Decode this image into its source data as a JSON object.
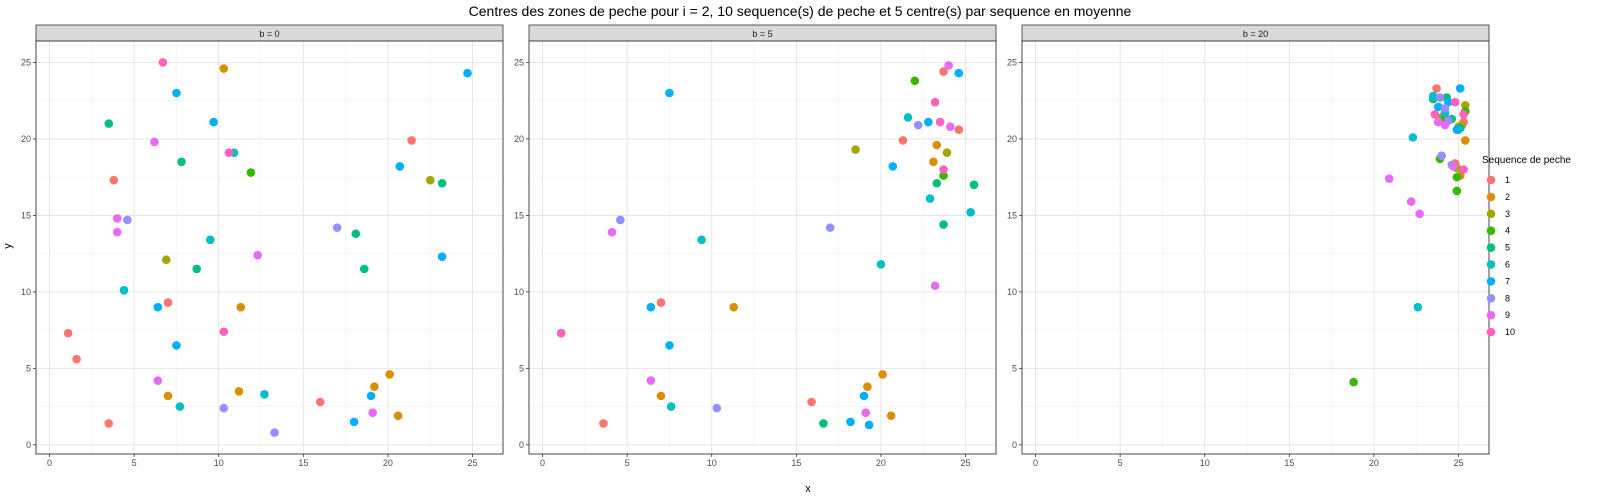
{
  "chart_data": {
    "type": "scatter",
    "title": "Centres des zones de peche pour i = 2, 10 sequence(s) de peche et 5 centre(s) par sequence en moyenne",
    "xlabel": "x",
    "ylabel": "y",
    "xlim": [
      -0.8,
      26.8
    ],
    "ylim": [
      -0.6,
      26.4
    ],
    "x_ticks": [
      0,
      5,
      10,
      15,
      20,
      25
    ],
    "y_ticks": [
      0,
      5,
      10,
      15,
      20,
      25
    ],
    "grid": true,
    "legend": {
      "title": "Sequence de peche",
      "position": "right",
      "entries": [
        "1",
        "2",
        "3",
        "4",
        "5",
        "6",
        "7",
        "8",
        "9",
        "10"
      ]
    },
    "colors": {
      "1": "#F8766D",
      "2": "#D89000",
      "3": "#A3A500",
      "4": "#39B600",
      "5": "#00BF7D",
      "6": "#00BFC4",
      "7": "#00B0F6",
      "8": "#9590FF",
      "9": "#E76BF3",
      "10": "#FF62BC"
    },
    "panels": [
      {
        "label": "b = 0",
        "points": [
          [
            1,
            1.1,
            7.3
          ],
          [
            1,
            1.6,
            5.6
          ],
          [
            1,
            3.5,
            1.4
          ],
          [
            1,
            3.8,
            17.3
          ],
          [
            1,
            7,
            9.3
          ],
          [
            1,
            16,
            2.8
          ],
          [
            1,
            21.4,
            19.9
          ],
          [
            2,
            10.3,
            24.6
          ],
          [
            2,
            7,
            3.2
          ],
          [
            2,
            11.3,
            9
          ],
          [
            2,
            11.2,
            3.5
          ],
          [
            2,
            19.2,
            3.8
          ],
          [
            2,
            20.1,
            4.6
          ],
          [
            2,
            20.6,
            1.9
          ],
          [
            3,
            6.9,
            12.1
          ],
          [
            3,
            22.5,
            17.3
          ],
          [
            4,
            11.9,
            17.8
          ],
          [
            5,
            3.5,
            21
          ],
          [
            5,
            7.8,
            18.5
          ],
          [
            5,
            8.7,
            11.5
          ],
          [
            5,
            18.1,
            13.8
          ],
          [
            5,
            18.6,
            11.5
          ],
          [
            5,
            23.2,
            17.1
          ],
          [
            6,
            4.4,
            10.1
          ],
          [
            6,
            7.7,
            2.5
          ],
          [
            6,
            9.5,
            13.4
          ],
          [
            6,
            12.7,
            3.3
          ],
          [
            6,
            10.9,
            19.1
          ],
          [
            7,
            7.5,
            23
          ],
          [
            7,
            9.7,
            21.1
          ],
          [
            7,
            6.4,
            9
          ],
          [
            7,
            7.5,
            6.5
          ],
          [
            7,
            18,
            1.5
          ],
          [
            7,
            19,
            3.2
          ],
          [
            7,
            20.7,
            18.2
          ],
          [
            7,
            23.2,
            12.3
          ],
          [
            7,
            24.7,
            24.3
          ],
          [
            8,
            4.6,
            14.7
          ],
          [
            8,
            10.3,
            2.4
          ],
          [
            8,
            13.3,
            0.8
          ],
          [
            8,
            17,
            14.2
          ],
          [
            9,
            4,
            14.8
          ],
          [
            9,
            4,
            13.9
          ],
          [
            9,
            6.2,
            19.8
          ],
          [
            9,
            6.4,
            4.2
          ],
          [
            9,
            12.3,
            12.4
          ],
          [
            9,
            19.1,
            2.1
          ],
          [
            10,
            6.7,
            25
          ],
          [
            10,
            10.6,
            19.1
          ],
          [
            10,
            10.3,
            7.4
          ]
        ]
      },
      {
        "label": "b = 5",
        "points": [
          [
            1,
            1.1,
            7.3
          ],
          [
            1,
            3.6,
            1.4
          ],
          [
            1,
            7,
            9.3
          ],
          [
            1,
            15.9,
            2.8
          ],
          [
            1,
            21.3,
            19.9
          ],
          [
            1,
            23.7,
            24.4
          ],
          [
            1,
            24.6,
            20.6
          ],
          [
            2,
            11.3,
            9
          ],
          [
            2,
            7,
            3.2
          ],
          [
            2,
            19.2,
            3.8
          ],
          [
            2,
            20.1,
            4.6
          ],
          [
            2,
            20.6,
            1.9
          ],
          [
            2,
            23.1,
            18.5
          ],
          [
            2,
            23.3,
            19.6
          ],
          [
            3,
            18.5,
            19.3
          ],
          [
            3,
            23.9,
            19.1
          ],
          [
            4,
            22,
            23.8
          ],
          [
            4,
            23.7,
            17.6
          ],
          [
            5,
            16.6,
            1.4
          ],
          [
            5,
            23.3,
            17.1
          ],
          [
            5,
            23.7,
            14.4
          ],
          [
            5,
            25.5,
            17
          ],
          [
            6,
            9.4,
            13.4
          ],
          [
            6,
            7.6,
            2.5
          ],
          [
            6,
            20,
            11.8
          ],
          [
            6,
            21.6,
            21.4
          ],
          [
            6,
            22.9,
            16.1
          ],
          [
            6,
            25.3,
            15.2
          ],
          [
            7,
            7.5,
            23
          ],
          [
            7,
            6.4,
            9
          ],
          [
            7,
            7.5,
            6.5
          ],
          [
            7,
            18.2,
            1.5
          ],
          [
            7,
            19,
            3.2
          ],
          [
            7,
            19.3,
            1.3
          ],
          [
            7,
            20.7,
            18.2
          ],
          [
            7,
            22.8,
            21.1
          ],
          [
            7,
            24.6,
            24.3
          ],
          [
            8,
            4.6,
            14.7
          ],
          [
            8,
            10.3,
            2.4
          ],
          [
            8,
            17,
            14.2
          ],
          [
            8,
            22.2,
            20.9
          ],
          [
            9,
            4.1,
            13.9
          ],
          [
            9,
            6.4,
            4.2
          ],
          [
            9,
            19.1,
            2.1
          ],
          [
            9,
            23.2,
            10.4
          ],
          [
            9,
            24,
            24.8
          ],
          [
            9,
            24.1,
            20.8
          ],
          [
            10,
            1.1,
            7.3
          ],
          [
            10,
            23.2,
            22.4
          ],
          [
            10,
            23.5,
            21.1
          ],
          [
            10,
            23.7,
            18
          ]
        ]
      },
      {
        "label": "b = 20",
        "points": [
          [
            1,
            23.7,
            23.3
          ],
          [
            1,
            24.8,
            18.4
          ],
          [
            1,
            25.3,
            21.1
          ],
          [
            2,
            24.3,
            22.7
          ],
          [
            2,
            25.4,
            19.9
          ],
          [
            2,
            25.2,
            20.9
          ],
          [
            2,
            25.1,
            17.6
          ],
          [
            3,
            25.4,
            22.2
          ],
          [
            3,
            25,
            20.8
          ],
          [
            3,
            24.9,
            18.1
          ],
          [
            3,
            24,
            21.4
          ],
          [
            4,
            18.8,
            4.1
          ],
          [
            4,
            24.9,
            16.6
          ],
          [
            4,
            24.9,
            17.5
          ],
          [
            4,
            24.2,
            21.4
          ],
          [
            4,
            23.9,
            18.7
          ],
          [
            4,
            25.4,
            21.8
          ],
          [
            5,
            23.5,
            22.6
          ],
          [
            5,
            24.3,
            22.7
          ],
          [
            5,
            24.6,
            21.3
          ],
          [
            5,
            25.1,
            20.7
          ],
          [
            6,
            22.6,
            9
          ],
          [
            6,
            22.3,
            20.1
          ],
          [
            6,
            23.5,
            22.8
          ],
          [
            6,
            24.2,
            21.7
          ],
          [
            6,
            25,
            20.6
          ],
          [
            7,
            25.1,
            23.3
          ],
          [
            7,
            24.4,
            22.4
          ],
          [
            7,
            23.8,
            22.1
          ],
          [
            7,
            24.9,
            20.6
          ],
          [
            8,
            24,
            18.9
          ],
          [
            8,
            24.2,
            22
          ],
          [
            8,
            24.4,
            21.2
          ],
          [
            8,
            23.9,
            22.7
          ],
          [
            8,
            24.6,
            18.3
          ],
          [
            9,
            20.9,
            17.4
          ],
          [
            9,
            22.2,
            15.9
          ],
          [
            9,
            22.7,
            15.1
          ],
          [
            9,
            23.8,
            21.1
          ],
          [
            9,
            24.2,
            20.9
          ],
          [
            9,
            24.7,
            18.2
          ],
          [
            10,
            23.6,
            21.6
          ],
          [
            10,
            24.8,
            22.4
          ],
          [
            10,
            25.3,
            21.6
          ],
          [
            10,
            25.3,
            18
          ]
        ]
      }
    ]
  }
}
